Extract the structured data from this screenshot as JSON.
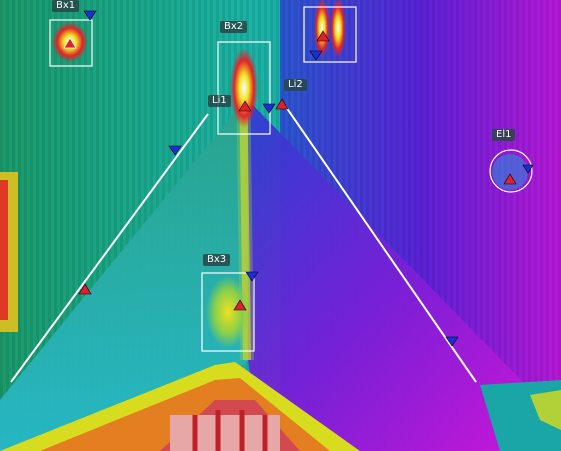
{
  "image": {
    "palette": "iron / rainbow thermal palette",
    "colors": {
      "hot": "#ffffff",
      "warm": "#e21f2a",
      "mid": "#f2e51a",
      "cool": "#18b0a8",
      "cold": "#3a2fd0",
      "coldest": "#d214d8",
      "tool_outline": "#ffffff",
      "marker_hot": "#e0202a",
      "marker_cold": "#1a2fd8",
      "label_bg": "#2f5656"
    }
  },
  "tools": {
    "boxes": [
      {
        "label": "Bx1"
      },
      {
        "label": "Bx2"
      },
      {
        "label": "Bx3"
      }
    ],
    "lines": [
      {
        "label": "Li1"
      },
      {
        "label": "Li2"
      }
    ],
    "ellipses": [
      {
        "label": "El1"
      }
    ]
  },
  "markers": {
    "hot_marker_icon": "triangle-up-red",
    "cold_marker_icon": "triangle-down-blue"
  }
}
